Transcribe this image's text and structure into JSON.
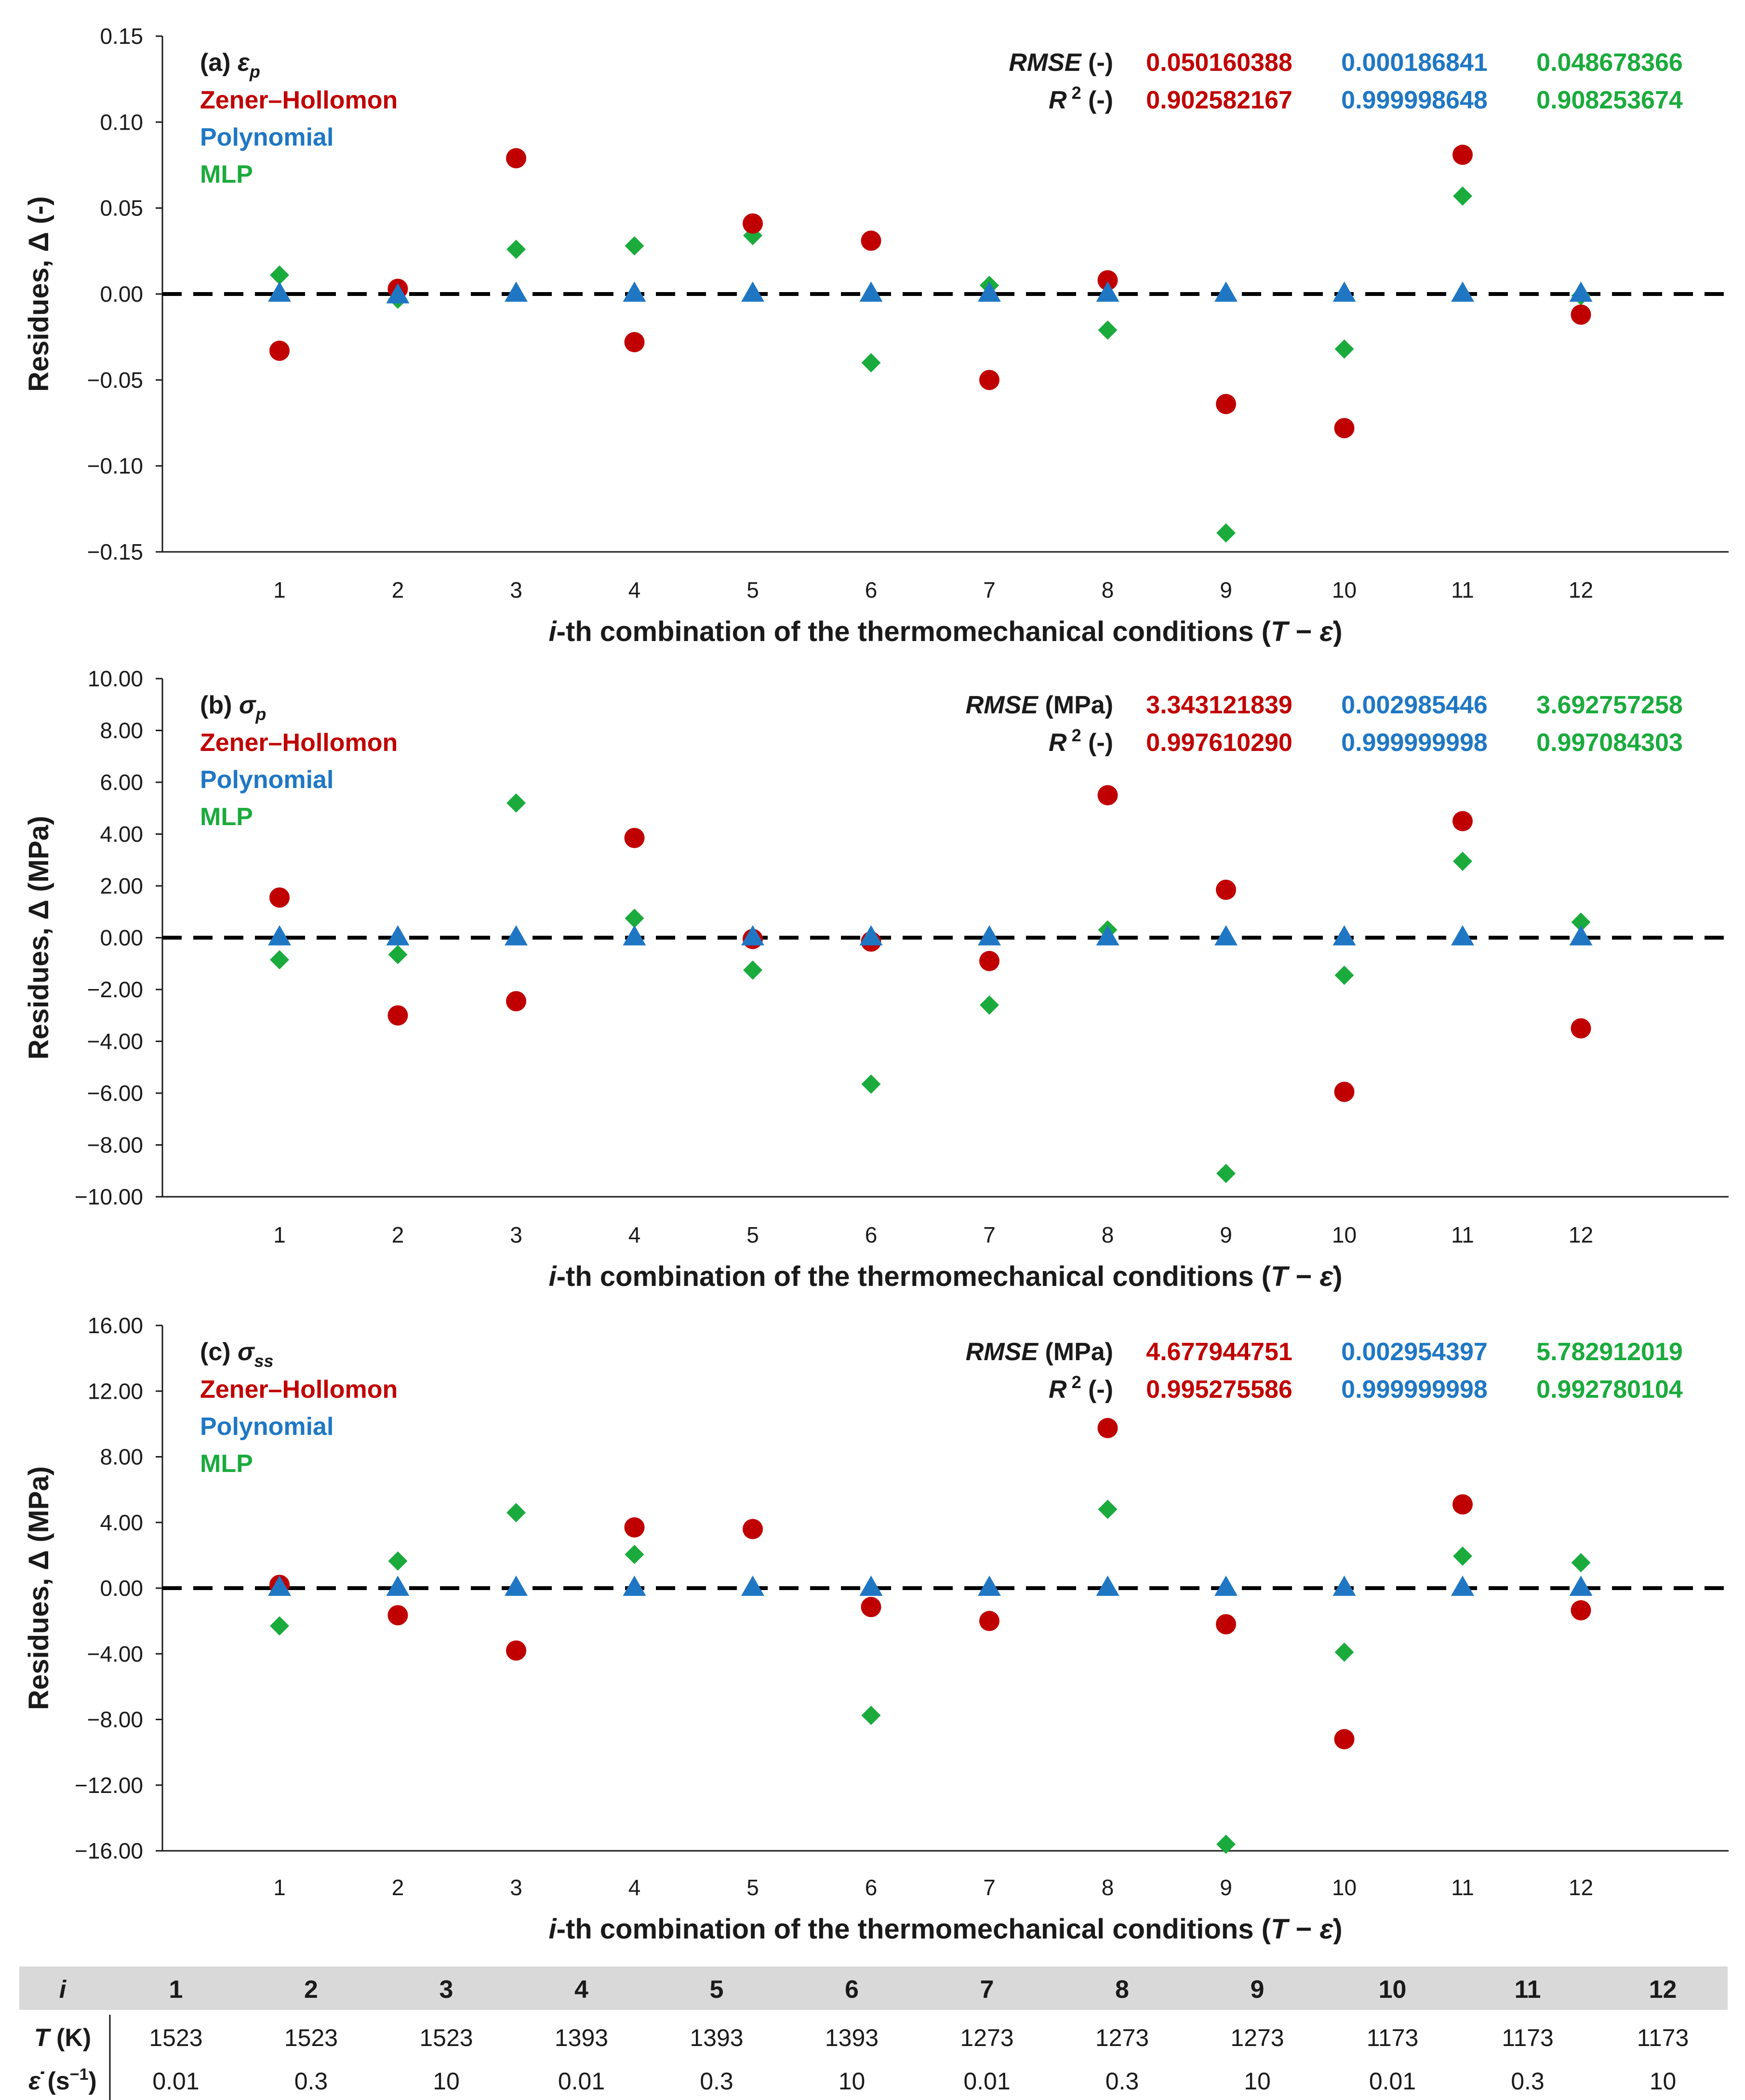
{
  "colors": {
    "zener": "#c00000",
    "polynomial": "#1f77c4",
    "mlp": "#1aab3c",
    "table_header_bg": "#d9d9d9"
  },
  "legend": {
    "zener": "Zener–Hollomon",
    "polynomial": "Polynomial",
    "mlp": "MLP"
  },
  "xlabel": {
    "prefix_italic": "i",
    "text": "-th combination of the thermomechanical conditions (",
    "T": "T",
    "dash": " − ",
    "eps": "ε̇",
    "close": ")"
  },
  "chart_data": [
    {
      "type": "scatter",
      "panel": "(a)",
      "symbol": "ε",
      "symbol_sub": "p",
      "ylabel": "Residues, Δ (-)",
      "ylim": [
        -0.15,
        0.15
      ],
      "yticks": [
        "0.15",
        "0.10",
        "0.05",
        "0.00",
        "−0.05",
        "−0.10",
        "−0.15"
      ],
      "x": [
        1,
        2,
        3,
        4,
        5,
        6,
        7,
        8,
        9,
        10,
        11,
        12
      ],
      "stats": {
        "rmse_label": "RMSE",
        "rmse_unit": "(-)",
        "r2_label": "R",
        "r2_sup": "2",
        "r2_unit": "(-)",
        "rmse": [
          "0.050160388",
          "0.000186841",
          "0.048678366"
        ],
        "r2": [
          "0.902582167",
          "0.999998648",
          "0.908253674"
        ]
      },
      "series": [
        {
          "name": "Zener–Hollomon",
          "marker": "circle",
          "values": [
            -0.033,
            0.003,
            0.079,
            -0.028,
            0.041,
            0.031,
            -0.05,
            0.008,
            -0.064,
            -0.078,
            0.081,
            -0.012
          ]
        },
        {
          "name": "Polynomial",
          "marker": "triangle",
          "values": [
            0.0,
            -0.001,
            0.0,
            0.0,
            0.0,
            0.0,
            0.0,
            0.0,
            0.0,
            0.0,
            0.0,
            0.0
          ]
        },
        {
          "name": "MLP",
          "marker": "diamond",
          "values": [
            0.011,
            -0.003,
            0.026,
            0.028,
            0.034,
            -0.04,
            0.005,
            -0.021,
            -0.139,
            -0.032,
            0.057,
            -0.001
          ]
        }
      ]
    },
    {
      "type": "scatter",
      "panel": "(b)",
      "symbol": "σ",
      "symbol_sub": "p",
      "ylabel": "Residues, Δ (MPa)",
      "ylim": [
        -10,
        10
      ],
      "yticks": [
        "10.00",
        "8.00",
        "6.00",
        "4.00",
        "2.00",
        "0.00",
        "−2.00",
        "−4.00",
        "−6.00",
        "−8.00",
        "−10.00"
      ],
      "x": [
        1,
        2,
        3,
        4,
        5,
        6,
        7,
        8,
        9,
        10,
        11,
        12
      ],
      "stats": {
        "rmse_label": "RMSE",
        "rmse_unit": "(MPa)",
        "r2_label": "R",
        "r2_sup": "2",
        "r2_unit": "(-)",
        "rmse": [
          "3.343121839",
          "0.002985446",
          "3.692757258"
        ],
        "r2": [
          "0.997610290",
          "0.999999998",
          "0.997084303"
        ]
      },
      "series": [
        {
          "name": "Zener–Hollomon",
          "marker": "circle",
          "values": [
            1.55,
            -3.0,
            -2.45,
            3.85,
            -0.05,
            -0.15,
            -0.9,
            5.5,
            1.85,
            -5.95,
            4.5,
            -3.5
          ]
        },
        {
          "name": "Polynomial",
          "marker": "triangle",
          "values": [
            0,
            0,
            0,
            0,
            0,
            0,
            0,
            0,
            0,
            0,
            0,
            0
          ]
        },
        {
          "name": "MLP",
          "marker": "diamond",
          "values": [
            -0.85,
            -0.65,
            5.2,
            0.75,
            -1.25,
            -5.65,
            -2.6,
            0.3,
            -9.1,
            -1.45,
            2.95,
            0.6
          ]
        }
      ]
    },
    {
      "type": "scatter",
      "panel": "(c)",
      "symbol": "σ",
      "symbol_sub": "ss",
      "ylabel": "Residues, Δ (MPa)",
      "ylim": [
        -16,
        16
      ],
      "yticks": [
        "16.00",
        "12.00",
        "8.00",
        "4.00",
        "0.00",
        "−4.00",
        "−8.00",
        "−12.00",
        "−16.00"
      ],
      "x": [
        1,
        2,
        3,
        4,
        5,
        6,
        7,
        8,
        9,
        10,
        11,
        12
      ],
      "stats": {
        "rmse_label": "RMSE",
        "rmse_unit": "(MPa)",
        "r2_label": "R",
        "r2_sup": "2",
        "r2_unit": "(-)",
        "rmse": [
          "4.677944751",
          "0.002954397",
          "5.782912019"
        ],
        "r2": [
          "0.995275586",
          "0.999999998",
          "0.992780104"
        ]
      },
      "series": [
        {
          "name": "Zener–Hollomon",
          "marker": "circle",
          "values": [
            0.2,
            -1.65,
            -3.8,
            3.7,
            3.6,
            -1.15,
            -2.0,
            9.75,
            -2.2,
            -9.2,
            5.1,
            -1.35
          ]
        },
        {
          "name": "Polynomial",
          "marker": "triangle",
          "values": [
            0,
            0,
            0,
            0,
            0,
            0,
            0,
            0,
            0,
            0,
            0,
            0
          ]
        },
        {
          "name": "MLP",
          "marker": "diamond",
          "values": [
            -2.3,
            1.65,
            4.6,
            2.05,
            3.65,
            -7.75,
            -2.0,
            4.8,
            -15.6,
            -3.9,
            1.95,
            1.55
          ]
        }
      ]
    }
  ],
  "table": {
    "i_label": "i",
    "T_label": "T",
    "T_unit": "(K)",
    "rate_label": "ε̇",
    "rate_unit": "(s",
    "rate_unit_sup": "−1",
    "rate_unit_close": ")",
    "i": [
      "1",
      "2",
      "3",
      "4",
      "5",
      "6",
      "7",
      "8",
      "9",
      "10",
      "11",
      "12"
    ],
    "T": [
      "1523",
      "1523",
      "1523",
      "1393",
      "1393",
      "1393",
      "1273",
      "1273",
      "1273",
      "1173",
      "1173",
      "1173"
    ],
    "rate": [
      "0.01",
      "0.3",
      "10",
      "0.01",
      "0.3",
      "10",
      "0.01",
      "0.3",
      "10",
      "0.01",
      "0.3",
      "10"
    ]
  }
}
